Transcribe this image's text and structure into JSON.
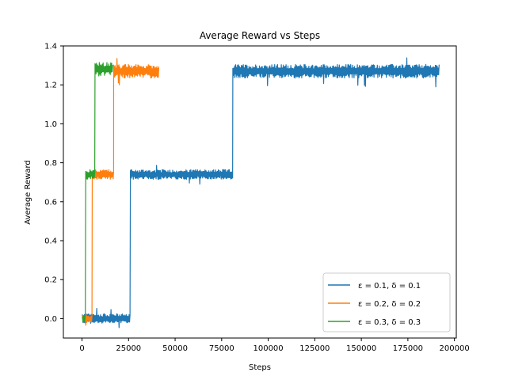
{
  "chart_data": {
    "type": "line",
    "title": "Average Reward vs Steps",
    "xlabel": "Steps",
    "ylabel": "Average Reward",
    "xlim": [
      -10000,
      201000
    ],
    "ylim": [
      -0.1,
      1.4
    ],
    "x_ticks": [
      0,
      25000,
      50000,
      75000,
      100000,
      125000,
      150000,
      175000,
      200000
    ],
    "x_tick_labels": [
      "0",
      "25000",
      "50000",
      "75000",
      "100000",
      "125000",
      "150000",
      "175000",
      "200000"
    ],
    "y_ticks": [
      0.0,
      0.2,
      0.4,
      0.6,
      0.8,
      1.0,
      1.2,
      1.4
    ],
    "y_tick_labels": [
      "0.0",
      "0.2",
      "0.4",
      "0.6",
      "0.8",
      "1.0",
      "1.2",
      "1.4"
    ],
    "grid": false,
    "legend_position": "lower-right",
    "series": [
      {
        "name": "ε = 0.1, δ = 0.1",
        "color": "#1f77b4",
        "segments": [
          {
            "x_start": 0,
            "x_end": 26000,
            "mean": 0.0,
            "noise": 0.025
          },
          {
            "x_start": 26000,
            "x_end": 81000,
            "mean": 0.74,
            "noise": 0.025
          },
          {
            "x_start": 81000,
            "x_end": 192000,
            "mean": 1.27,
            "noise": 0.035
          }
        ]
      },
      {
        "name": "ε = 0.2, δ = 0.2",
        "color": "#ff7f0e",
        "segments": [
          {
            "x_start": 0,
            "x_end": 5500,
            "mean": 0.0,
            "noise": 0.02
          },
          {
            "x_start": 5500,
            "x_end": 17000,
            "mean": 0.74,
            "noise": 0.025
          },
          {
            "x_start": 17000,
            "x_end": 41500,
            "mean": 1.27,
            "noise": 0.035
          }
        ]
      },
      {
        "name": "ε = 0.3, δ = 0.3",
        "color": "#2ca02c",
        "segments": [
          {
            "x_start": 0,
            "x_end": 2000,
            "mean": 0.0,
            "noise": 0.02
          },
          {
            "x_start": 2000,
            "x_end": 7000,
            "mean": 0.74,
            "noise": 0.025
          },
          {
            "x_start": 7000,
            "x_end": 16500,
            "mean": 1.28,
            "noise": 0.035
          }
        ]
      }
    ]
  }
}
